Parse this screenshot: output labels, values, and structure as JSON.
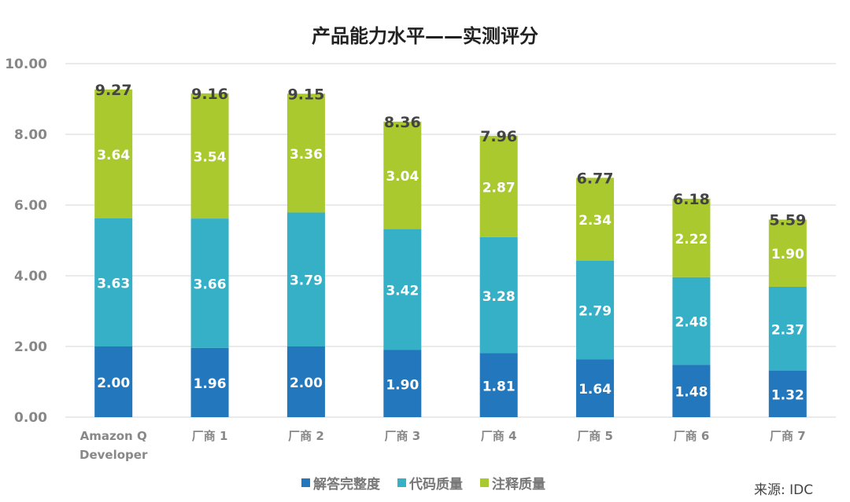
{
  "chart_data": {
    "type": "bar",
    "stacked": true,
    "title": "产品能力水平——实测评分",
    "categories": [
      "Amazon Q Developer",
      "厂商 1",
      "厂商 2",
      "厂商 3",
      "厂商 4",
      "厂商 5",
      "厂商 6",
      "厂商 7"
    ],
    "series": [
      {
        "name": "解答完整度",
        "color": "#2277BD",
        "values": [
          2.0,
          1.96,
          2.0,
          1.9,
          1.81,
          1.64,
          1.48,
          1.32
        ]
      },
      {
        "name": "代码质量",
        "color": "#35B0C6",
        "values": [
          3.63,
          3.66,
          3.79,
          3.42,
          3.28,
          2.79,
          2.48,
          2.37
        ]
      },
      {
        "name": "注释质量",
        "color": "#A9C92F",
        "values": [
          3.64,
          3.54,
          3.36,
          3.04,
          2.87,
          2.34,
          2.22,
          1.9
        ]
      }
    ],
    "totals": [
      9.27,
      9.16,
      9.15,
      8.36,
      7.96,
      6.77,
      6.18,
      5.59
    ],
    "ylim": [
      0,
      10
    ],
    "yticks": [
      "0.00",
      "2.00",
      "4.00",
      "6.00",
      "8.00",
      "10.00"
    ],
    "grid": true,
    "legend": "bottom"
  },
  "source": "来源: IDC"
}
